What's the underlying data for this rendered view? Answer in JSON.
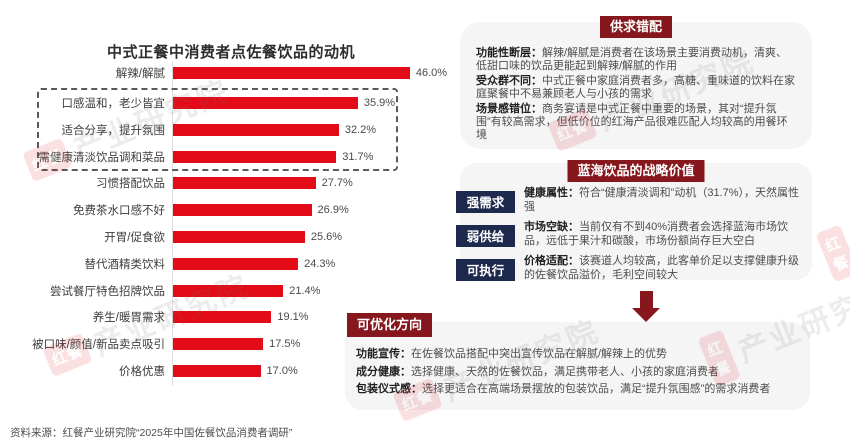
{
  "page": {
    "source_note": "资料来源：红餐产业研究院“2025年中国佐餐饮品消费者调研”"
  },
  "colors": {
    "bar": "#e30b17",
    "header_bg": "#86181d",
    "tag_bg": "#1e2a4d",
    "panel_bg": "#f5f5f6"
  },
  "chart_data": {
    "type": "bar",
    "orientation": "horizontal",
    "title": "中式正餐中消费者点佐餐饮品的动机",
    "categories": [
      "解辣/解腻",
      "口感温和，老少皆宜",
      "适合分享，提升氛围",
      "需健康清淡饮品调和菜品",
      "习惯搭配饮品",
      "免费茶水口感不好",
      "开胃/促食欲",
      "替代酒精类饮料",
      "尝试餐厅特色招牌饮品",
      "养生/暖胃需求",
      "被口味/颜值/新品卖点吸引",
      "价格优惠"
    ],
    "values": [
      46.0,
      35.9,
      32.2,
      31.7,
      27.7,
      26.9,
      25.6,
      24.3,
      21.4,
      19.1,
      17.5,
      17.0
    ],
    "unit": "%",
    "xlim": [
      0,
      50
    ],
    "grid": false,
    "highlighted_categories": [
      "口感温和，老少皆宜",
      "适合分享，提升氛围",
      "需健康清淡饮品调和菜品"
    ],
    "highlight_style": "dashed-box"
  },
  "panels": {
    "mismatch": {
      "title": "供求错配",
      "items": [
        {
          "lead": "功能性断层：",
          "text": "解辣/解腻是消费者在该场景主要消费动机，清爽、低甜口味的饮品更能起到解辣/解腻的作用"
        },
        {
          "lead": "受众群不同：",
          "text": "中式正餐中家庭消费者多，高糖、重味道的饮料在家庭聚餐中不易兼顾老人与小孩的需求"
        },
        {
          "lead": "场景感错位：",
          "text": "商务宴请是中式正餐中重要的场景，其对“提升氛围”有较高需求，但低价位的红海产品很难匹配人均较高的用餐环境"
        }
      ]
    },
    "strategy": {
      "title": "蓝海饮品的战略价值",
      "rows": [
        {
          "tag": "强需求",
          "lead": "健康属性：",
          "text": "符合“健康清淡调和”动机（31.7%），天然属性强"
        },
        {
          "tag": "弱供给",
          "lead": "市场空缺：",
          "text": "当前仅有不到40%消费者会选择蓝海市场饮品，远低于果汁和碳酸，市场份额尚存巨大空白"
        },
        {
          "tag": "可执行",
          "lead": "价格适配：",
          "text": "该赛道人均较高，此客单价足以支撑健康升级的佐餐饮品溢价，毛利空间较大"
        }
      ]
    },
    "optimize": {
      "title": "可优化方向",
      "items": [
        {
          "lead": "功能宣传：",
          "text": "在佐餐饮品搭配中突出宣传饮品在解腻/解辣上的优势"
        },
        {
          "lead": "成分健康：",
          "text": "选择健康、天然的佐餐饮品，满足携带老人、小孩的家庭消费者"
        },
        {
          "lead": "包装仪式感：",
          "text": "选择更适合在高端场景摆放的包装饮品，满足“提升氛围感”的需求消费者"
        }
      ]
    }
  },
  "watermark": {
    "logo": "红餐",
    "text": "产业研究院"
  }
}
